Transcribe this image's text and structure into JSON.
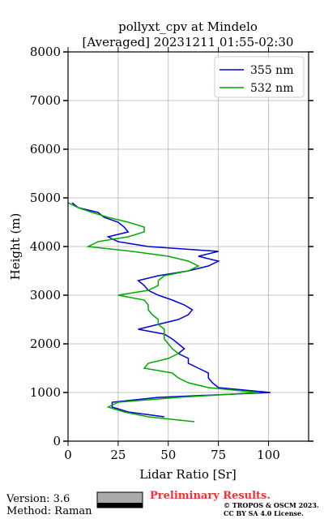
{
  "chart_data": {
    "type": "line",
    "title": [
      "pollyxt_cpv at Mindelo",
      "[Averaged] 20231211 01:55-02:30"
    ],
    "xlabel": "Lidar Ratio [Sr]",
    "ylabel": "Height (m)",
    "y": [
      400,
      500,
      600,
      700,
      800,
      900,
      1000,
      1100,
      1200,
      1300,
      1400,
      1500,
      1600,
      1700,
      1800,
      1900,
      2000,
      2100,
      2200,
      2300,
      2400,
      2500,
      2600,
      2700,
      2800,
      2900,
      3000,
      3100,
      3200,
      3300,
      3400,
      3500,
      3600,
      3700,
      3800,
      3900,
      4000,
      4100,
      4200,
      4300,
      4400,
      4500,
      4600,
      4700,
      4800,
      4900
    ],
    "series": [
      {
        "name": "355 nm",
        "color": "#0000dd",
        "values": [
          null,
          48,
          30,
          22,
          22,
          45,
          101,
          75,
          72,
          70,
          70,
          65,
          60,
          60,
          55,
          58,
          55,
          52,
          48,
          35,
          45,
          55,
          60,
          62,
          58,
          52,
          45,
          40,
          38,
          35,
          45,
          60,
          70,
          75,
          65,
          75,
          40,
          25,
          20,
          30,
          28,
          25,
          18,
          15,
          5,
          2
        ]
      },
      {
        "name": "532 nm",
        "color": "#00aa00",
        "values": [
          63,
          40,
          28,
          20,
          25,
          55,
          95,
          70,
          60,
          55,
          52,
          38,
          40,
          50,
          55,
          52,
          50,
          48,
          48,
          48,
          45,
          45,
          42,
          40,
          40,
          38,
          25,
          40,
          45,
          45,
          48,
          60,
          65,
          60,
          50,
          32,
          10,
          15,
          30,
          38,
          38,
          30,
          20,
          12,
          5,
          0
        ]
      }
    ],
    "xlim": [
      0,
      120
    ],
    "xticks": [
      0,
      25,
      50,
      75,
      100
    ],
    "ylim": [
      0,
      8000
    ],
    "yticks": [
      0,
      1000,
      2000,
      3000,
      4000,
      5000,
      6000,
      7000,
      8000
    ],
    "grid": true,
    "legend": "upper right",
    "footer": {
      "version": "Version: 3.6",
      "method": "Method: Raman",
      "status": "Preliminary Results.",
      "license": [
        "© TROPOS & OSCM 2023.",
        "CC BY SA 4.0 License."
      ]
    }
  }
}
